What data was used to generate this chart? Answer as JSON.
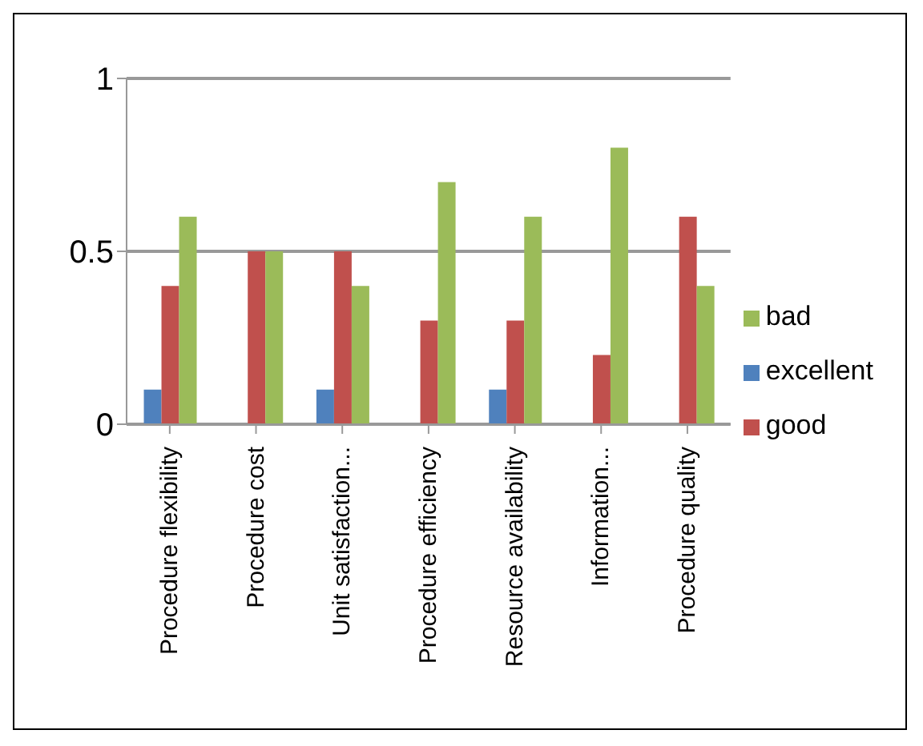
{
  "chart_data": {
    "type": "bar",
    "categories": [
      "Procedure flexibility",
      "Procedure cost",
      "Unit satisfaction...",
      "Procedure efficiency",
      "Resource availability",
      "Information...",
      "Procedure quality"
    ],
    "series": [
      {
        "name": "excellent",
        "color": "#4f81bd",
        "values": [
          0.1,
          0,
          0.1,
          0,
          0.1,
          0,
          0
        ]
      },
      {
        "name": "good",
        "color": "#c0504d",
        "values": [
          0.4,
          0.5,
          0.5,
          0.3,
          0.3,
          0.2,
          0.6
        ]
      },
      {
        "name": "bad",
        "color": "#9bbb59",
        "values": [
          0.6,
          0.5,
          0.4,
          0.7,
          0.6,
          0.8,
          0.4
        ]
      }
    ],
    "ylim": [
      0,
      1
    ],
    "yticks": [
      0,
      0.5,
      1
    ],
    "grid": "y",
    "legend": "right"
  }
}
